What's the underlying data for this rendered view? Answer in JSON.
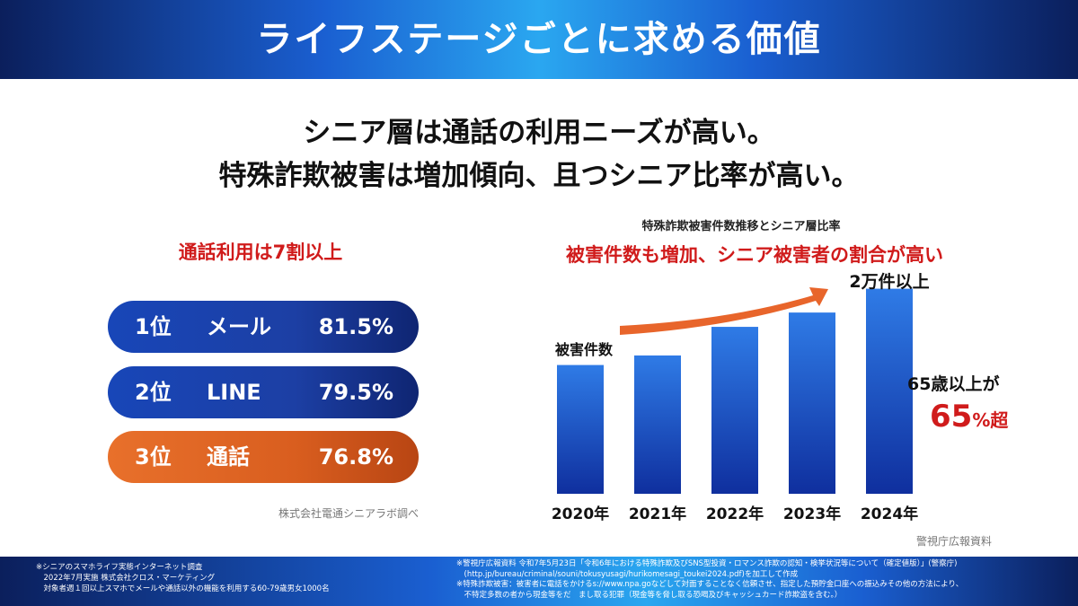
{
  "header": {
    "title": "ライフステージごとに求める価値"
  },
  "headline": {
    "line1": "シニア層は通話の利用ニーズが高い。",
    "line2": "特殊詐欺被害は増加傾向、且つシニア比率が高い。"
  },
  "left": {
    "title": "通話利用は7割以上",
    "rankings": [
      {
        "rank": "1位",
        "name": "メール",
        "pct": "81.5%"
      },
      {
        "rank": "2位",
        "name": "LINE",
        "pct": "79.5%"
      },
      {
        "rank": "3位",
        "name": "通話",
        "pct": "76.8%"
      }
    ],
    "source": "株式会社電通シニアラボ調べ"
  },
  "chart": {
    "title": "特殊詐欺被害件数推移とシニア層比率",
    "subtitle": "被害件数も増加、シニア被害者の割合が高い",
    "annotation_top": "2万件以上",
    "annotation_left": "被害件数",
    "annotation_right1": "65歳以上が",
    "annotation_right2_big": "65",
    "annotation_right2_small": "%超",
    "source": "警視庁広報資料",
    "colors": {
      "bar_top": "#2f7be6",
      "bar_bottom": "#0f2f9e",
      "arrow": "#e8652b"
    }
  },
  "chart_data": {
    "type": "bar",
    "categories": [
      "2020年",
      "2021年",
      "2022年",
      "2023年",
      "2024年"
    ],
    "values": [
      13500,
      14500,
      17500,
      19000,
      21500
    ],
    "ylim": [
      0,
      24000
    ],
    "title": "特殊詐欺被害件数推移とシニア層比率",
    "xlabel": "",
    "ylabel": ""
  },
  "footer": {
    "left": [
      "※シニアのスマホライフ実態インターネット調査",
      "　2022年7月実施 株式会社クロス・マーケティング",
      "　対象者週１回以上スマホでメールや通話以外の機能を利用する60-79歳男女1000名"
    ],
    "right": [
      "※警視庁広報資料 令和7年5月23日「令和6年における特殊詐欺及びSNS型投資・ロマンス詐欺の認知・検挙状況等について（確定値版）」(警察庁)",
      "　(http.jp/bureau/criminal/souni/tokusyusagi/hurikomesagi_toukei2024.pdf)を加工して作成",
      "※特殊詐欺被害：被害者に電話をかけるs://www.npa.goなどして対面することなく信頼させ、指定した預貯金口座への振込みその他の方法により、",
      "　不特定多数の者から現金等をだ　まし取る犯罪（現金等を脅し取る恐喝及びキャッシュカード詐欺盗を含む。）"
    ]
  }
}
